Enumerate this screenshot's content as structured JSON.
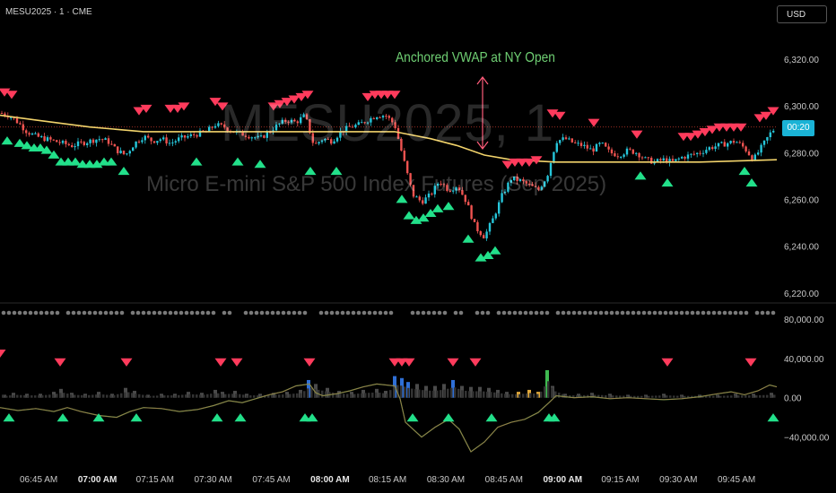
{
  "header": {
    "symbol": "MESU2025 · 1 · CME",
    "currency": "USD"
  },
  "watermark": {
    "ticker": "MESU2025, 1",
    "name": "Micro E-mini S&P 500 Index Futures (Sep 2025)"
  },
  "annotation": {
    "text": "Anchored VWAP at NY Open"
  },
  "price_tag": "00:20",
  "colors": {
    "bull": "#26c6da",
    "bear": "#ef5350",
    "vwap": "#f2d36b",
    "buy_signal": "#22e08a",
    "sell_signal": "#ff3b5c",
    "oscillator": "#3fb950",
    "background": "#000000"
  },
  "chart_data": [
    {
      "type": "candlestick",
      "title": "",
      "y_axis": {
        "ticks": [
          "6,320.00",
          "6,300.00",
          "6,280.00",
          "6,260.00",
          "6,240.00",
          "6,220.00"
        ],
        "tick_values": [
          6320,
          6300,
          6280,
          6260,
          6240,
          6220
        ],
        "ylim": [
          6218,
          6330
        ]
      },
      "x_axis": {
        "ticks": [
          "06:45 AM",
          "07:00 AM",
          "07:15 AM",
          "07:30 AM",
          "07:45 AM",
          "08:00 AM",
          "08:15 AM",
          "08:30 AM",
          "08:45 AM",
          "09:00 AM",
          "09:15 AM",
          "09:30 AM",
          "09:45 AM"
        ],
        "bold": [
          "07:00 AM",
          "08:00 AM",
          "09:00 AM"
        ]
      },
      "close_path": [
        [
          0,
          6297
        ],
        [
          10,
          6296
        ],
        [
          20,
          6293
        ],
        [
          30,
          6289
        ],
        [
          40,
          6287
        ],
        [
          50,
          6286
        ],
        [
          60,
          6285
        ],
        [
          70,
          6284
        ],
        [
          80,
          6283
        ],
        [
          90,
          6284
        ],
        [
          100,
          6285
        ],
        [
          110,
          6286
        ],
        [
          120,
          6285
        ],
        [
          130,
          6281
        ],
        [
          140,
          6279
        ],
        [
          150,
          6284
        ],
        [
          160,
          6287
        ],
        [
          170,
          6285
        ],
        [
          180,
          6286
        ],
        [
          190,
          6284
        ],
        [
          200,
          6286
        ],
        [
          210,
          6287
        ],
        [
          220,
          6288
        ],
        [
          230,
          6289
        ],
        [
          240,
          6292
        ],
        [
          250,
          6291
        ],
        [
          260,
          6289
        ],
        [
          270,
          6288
        ],
        [
          280,
          6287
        ],
        [
          290,
          6286
        ],
        [
          300,
          6289
        ],
        [
          310,
          6292
        ],
        [
          320,
          6294
        ],
        [
          330,
          6293
        ],
        [
          340,
          6296
        ],
        [
          350,
          6283
        ],
        [
          360,
          6286
        ],
        [
          370,
          6285
        ],
        [
          380,
          6289
        ],
        [
          390,
          6291
        ],
        [
          400,
          6292
        ],
        [
          410,
          6294
        ],
        [
          420,
          6296
        ],
        [
          430,
          6296
        ],
        [
          440,
          6292
        ],
        [
          450,
          6277
        ],
        [
          460,
          6262
        ],
        [
          470,
          6259
        ],
        [
          480,
          6262
        ],
        [
          490,
          6268
        ],
        [
          500,
          6264
        ],
        [
          510,
          6266
        ],
        [
          520,
          6259
        ],
        [
          530,
          6248
        ],
        [
          540,
          6244
        ],
        [
          550,
          6252
        ],
        [
          560,
          6262
        ],
        [
          570,
          6269
        ],
        [
          580,
          6268
        ],
        [
          590,
          6266
        ],
        [
          600,
          6264
        ],
        [
          610,
          6270
        ],
        [
          620,
          6285
        ],
        [
          630,
          6286
        ],
        [
          640,
          6284
        ],
        [
          650,
          6283
        ],
        [
          660,
          6281
        ],
        [
          670,
          6284
        ],
        [
          680,
          6280
        ],
        [
          690,
          6279
        ],
        [
          700,
          6281
        ],
        [
          710,
          6280
        ],
        [
          720,
          6277
        ],
        [
          730,
          6276
        ],
        [
          740,
          6277
        ],
        [
          750,
          6276
        ],
        [
          760,
          6278
        ],
        [
          770,
          6279
        ],
        [
          780,
          6280
        ],
        [
          790,
          6282
        ],
        [
          800,
          6283
        ],
        [
          810,
          6284
        ],
        [
          820,
          6285
        ],
        [
          830,
          6282
        ],
        [
          840,
          6277
        ],
        [
          850,
          6283
        ],
        [
          860,
          6289
        ],
        [
          866,
          6291
        ]
      ],
      "vwap_path": [
        [
          0,
          6296
        ],
        [
          40,
          6294
        ],
        [
          100,
          6291
        ],
        [
          160,
          6289
        ],
        [
          250,
          6289
        ],
        [
          340,
          6289
        ],
        [
          440,
          6289
        ],
        [
          480,
          6286
        ],
        [
          510,
          6283
        ],
        [
          540,
          6279
        ],
        [
          570,
          6277
        ],
        [
          620,
          6276
        ],
        [
          700,
          6276
        ],
        [
          780,
          6276
        ],
        [
          866,
          6277
        ]
      ],
      "ref_level": 6291,
      "sell_markers": [
        [
          5,
          6306
        ],
        [
          13,
          6305
        ],
        [
          155,
          6298
        ],
        [
          163,
          6299
        ],
        [
          190,
          6299
        ],
        [
          198,
          6299
        ],
        [
          205,
          6300
        ],
        [
          240,
          6302
        ],
        [
          248,
          6300
        ],
        [
          305,
          6300
        ],
        [
          312,
          6301
        ],
        [
          320,
          6302
        ],
        [
          328,
          6303
        ],
        [
          336,
          6304
        ],
        [
          343,
          6305
        ],
        [
          410,
          6304
        ],
        [
          418,
          6305
        ],
        [
          425,
          6305
        ],
        [
          432,
          6305
        ],
        [
          440,
          6305
        ],
        [
          566,
          6275
        ],
        [
          574,
          6276
        ],
        [
          582,
          6276
        ],
        [
          590,
          6276
        ],
        [
          598,
          6277
        ],
        [
          616,
          6297
        ],
        [
          624,
          6296
        ],
        [
          662,
          6293
        ],
        [
          710,
          6288
        ],
        [
          762,
          6287
        ],
        [
          770,
          6287
        ],
        [
          778,
          6288
        ],
        [
          786,
          6289
        ],
        [
          794,
          6290
        ],
        [
          802,
          6291
        ],
        [
          810,
          6291
        ],
        [
          818,
          6291
        ],
        [
          826,
          6291
        ],
        [
          847,
          6295
        ],
        [
          854,
          6296
        ],
        [
          862,
          6298
        ]
      ],
      "buy_markers": [
        [
          8,
          6285
        ],
        [
          22,
          6284
        ],
        [
          30,
          6283
        ],
        [
          38,
          6282
        ],
        [
          45,
          6282
        ],
        [
          52,
          6281
        ],
        [
          60,
          6279
        ],
        [
          68,
          6276
        ],
        [
          76,
          6276
        ],
        [
          84,
          6276
        ],
        [
          92,
          6275
        ],
        [
          100,
          6275
        ],
        [
          108,
          6275
        ],
        [
          116,
          6276
        ],
        [
          124,
          6276
        ],
        [
          138,
          6272
        ],
        [
          219,
          6276
        ],
        [
          265,
          6276
        ],
        [
          290,
          6275
        ],
        [
          346,
          6272
        ],
        [
          375,
          6272
        ],
        [
          448,
          6260
        ],
        [
          456,
          6253
        ],
        [
          464,
          6251
        ],
        [
          472,
          6252
        ],
        [
          480,
          6254
        ],
        [
          488,
          6256
        ],
        [
          500,
          6257
        ],
        [
          522,
          6243
        ],
        [
          536,
          6235
        ],
        [
          544,
          6236
        ],
        [
          552,
          6238
        ],
        [
          714,
          6270
        ],
        [
          744,
          6267
        ],
        [
          830,
          6272
        ],
        [
          838,
          6267
        ]
      ]
    },
    {
      "type": "line",
      "title": "",
      "y_axis": {
        "ticks": [
          "80,000.00",
          "40,000.00",
          "0.00",
          "−40,000.00"
        ],
        "tick_values": [
          80000,
          40000,
          0,
          -40000
        ],
        "ylim": [
          -65000,
          90000
        ]
      },
      "series": [
        {
          "type": "line",
          "points": [
            [
              0,
              -10000
            ],
            [
              20,
              -13000
            ],
            [
              40,
              -11000
            ],
            [
              60,
              -14000
            ],
            [
              75,
              -10000
            ],
            [
              90,
              -14000
            ],
            [
              110,
              -18000
            ],
            [
              130,
              -20000
            ],
            [
              145,
              -14000
            ],
            [
              160,
              -10000
            ],
            [
              180,
              -11000
            ],
            [
              200,
              -14000
            ],
            [
              220,
              -12000
            ],
            [
              238,
              -8000
            ],
            [
              255,
              -3000
            ],
            [
              270,
              -5000
            ],
            [
              285,
              -1000
            ],
            [
              300,
              3000
            ],
            [
              315,
              6000
            ],
            [
              330,
              12000
            ],
            [
              345,
              14000
            ],
            [
              352,
              5000
            ],
            [
              360,
              2000
            ],
            [
              375,
              4000
            ],
            [
              390,
              7000
            ],
            [
              405,
              11000
            ],
            [
              420,
              14000
            ],
            [
              440,
              12000
            ],
            [
              446,
              -1000
            ],
            [
              452,
              -25000
            ],
            [
              470,
              -40000
            ],
            [
              485,
              -30000
            ],
            [
              500,
              -22000
            ],
            [
              512,
              -32000
            ],
            [
              525,
              -55000
            ],
            [
              540,
              -45000
            ],
            [
              555,
              -30000
            ],
            [
              570,
              -25000
            ],
            [
              585,
              -22000
            ],
            [
              600,
              -15000
            ],
            [
              612,
              -5000
            ],
            [
              620,
              2000
            ],
            [
              640,
              0
            ],
            [
              660,
              1000
            ],
            [
              680,
              -1000
            ],
            [
              700,
              0
            ],
            [
              720,
              -1000
            ],
            [
              740,
              -2000
            ],
            [
              760,
              -1000
            ],
            [
              780,
              1000
            ],
            [
              800,
              4000
            ],
            [
              815,
              6000
            ],
            [
              830,
              3000
            ],
            [
              845,
              7000
            ],
            [
              858,
              13000
            ],
            [
              866,
              11000
            ]
          ]
        }
      ],
      "volume_bars": [
        [
          5,
          3000
        ],
        [
          15,
          5000
        ],
        [
          30,
          4000
        ],
        [
          45,
          4000
        ],
        [
          60,
          6000
        ],
        [
          68,
          9000
        ],
        [
          80,
          5000
        ],
        [
          95,
          4000
        ],
        [
          110,
          6000
        ],
        [
          125,
          4000
        ],
        [
          140,
          10000
        ],
        [
          150,
          7000
        ],
        [
          165,
          3000
        ],
        [
          180,
          4000
        ],
        [
          195,
          4000
        ],
        [
          210,
          6000
        ],
        [
          225,
          5000
        ],
        [
          240,
          8000
        ],
        [
          248,
          6000
        ],
        [
          262,
          7000
        ],
        [
          275,
          4000
        ],
        [
          290,
          4000
        ],
        [
          305,
          5000
        ],
        [
          320,
          6000
        ],
        [
          335,
          8000
        ],
        [
          344,
          18000
        ],
        [
          352,
          14000
        ],
        [
          365,
          10000
        ],
        [
          378,
          7000
        ],
        [
          392,
          6000
        ],
        [
          405,
          8000
        ],
        [
          420,
          9000
        ],
        [
          430,
          7000
        ],
        [
          440,
          22000
        ],
        [
          448,
          20000
        ],
        [
          455,
          16000
        ],
        [
          465,
          14000
        ],
        [
          475,
          12000
        ],
        [
          485,
          12000
        ],
        [
          495,
          14000
        ],
        [
          505,
          18000
        ],
        [
          515,
          12000
        ],
        [
          525,
          11000
        ],
        [
          535,
          11000
        ],
        [
          545,
          10000
        ],
        [
          555,
          8000
        ],
        [
          565,
          6000
        ],
        [
          578,
          6000
        ],
        [
          590,
          8000
        ],
        [
          600,
          6000
        ],
        [
          610,
          28000
        ],
        [
          616,
          12000
        ],
        [
          630,
          4000
        ],
        [
          645,
          4000
        ],
        [
          660,
          5000
        ],
        [
          680,
          4000
        ],
        [
          700,
          3000
        ],
        [
          720,
          3000
        ],
        [
          740,
          4000
        ],
        [
          760,
          3000
        ],
        [
          780,
          3000
        ],
        [
          800,
          3000
        ],
        [
          820,
          4000
        ],
        [
          840,
          4000
        ],
        [
          860,
          5000
        ]
      ],
      "sell_markers": [
        [
          0,
          40000
        ],
        [
          67,
          31000
        ],
        [
          141,
          31000
        ],
        [
          246,
          31000
        ],
        [
          264,
          31000
        ],
        [
          345,
          31000
        ],
        [
          440,
          31000
        ],
        [
          448,
          31000
        ],
        [
          456,
          31000
        ],
        [
          505,
          31000
        ],
        [
          530,
          31000
        ],
        [
          744,
          31000
        ],
        [
          837,
          31000
        ]
      ],
      "buy_markers": [
        [
          10,
          -17000
        ],
        [
          70,
          -17000
        ],
        [
          110,
          -17000
        ],
        [
          152,
          -17000
        ],
        [
          242,
          -17000
        ],
        [
          268,
          -17000
        ],
        [
          340,
          -17000
        ],
        [
          348,
          -17000
        ],
        [
          460,
          -17000
        ],
        [
          500,
          -17000
        ],
        [
          548,
          -17000
        ],
        [
          612,
          -17000
        ],
        [
          618,
          -17000
        ],
        [
          862,
          -17000
        ]
      ],
      "status_dots_row": true
    }
  ]
}
